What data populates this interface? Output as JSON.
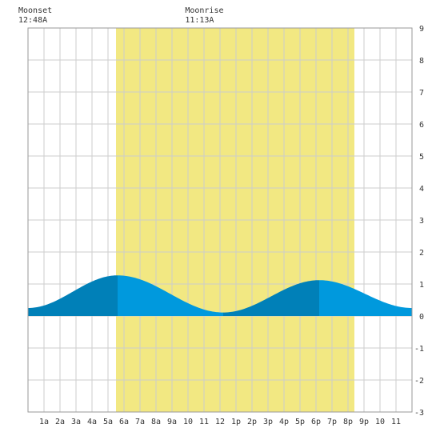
{
  "chart_data": {
    "type": "area",
    "title": "",
    "xlabel": "",
    "ylabel": "",
    "x_range_hours": [
      0,
      24
    ],
    "ylim": [
      -3,
      9
    ],
    "y_ticks": [
      -3,
      -2,
      -1,
      0,
      1,
      2,
      3,
      4,
      5,
      6,
      7,
      8,
      9
    ],
    "x_tick_labels": [
      "1a",
      "2a",
      "3a",
      "4a",
      "5a",
      "6a",
      "7a",
      "8a",
      "9a",
      "10",
      "11",
      "12",
      "1p",
      "2p",
      "3p",
      "4p",
      "5p",
      "6p",
      "7p",
      "8p",
      "9p",
      "10",
      "11"
    ],
    "grid": true,
    "daylight_hours": [
      5.5,
      20.4
    ],
    "moon_events": [
      {
        "name": "Moonset",
        "time": "12:48A",
        "hour": 0.8
      },
      {
        "name": "Moonrise",
        "time": "11:13A",
        "hour": 11.217
      }
    ],
    "tide_extrema": [
      {
        "hour": 0,
        "height": 0.25
      },
      {
        "hour": 5.6,
        "height": 1.27
      },
      {
        "hour": 12.2,
        "height": 0.11
      },
      {
        "hour": 18.2,
        "height": 1.12
      },
      {
        "hour": 24,
        "height": 0.25
      }
    ],
    "colors": {
      "daylight": "#f2e882",
      "tide_rising": "#0080b8",
      "tide_falling": "#0099dd",
      "grid": "#cccccc",
      "background": "#ffffff"
    }
  }
}
